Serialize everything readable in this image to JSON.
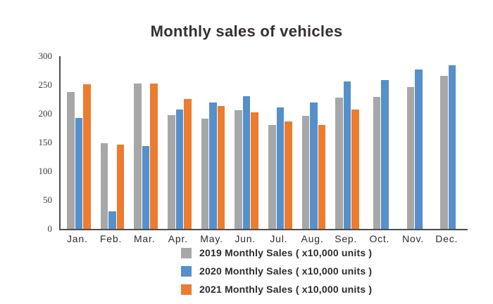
{
  "chart_data": {
    "type": "bar",
    "title": "Monthly sales of vehicles",
    "categories": [
      "Jan.",
      "Feb.",
      "Mar.",
      "Apr.",
      "May.",
      "Jun.",
      "Jul.",
      "Aug.",
      "Sep.",
      "Oct.",
      "Nov.",
      "Dec."
    ],
    "series": [
      {
        "name": "2019 Monthly Sales ( x10,000 units )",
        "color": "#a7a7a7",
        "values": [
          238,
          149,
          253,
          198,
          192,
          206,
          181,
          196,
          228,
          229,
          246,
          266
        ]
      },
      {
        "name": "2020 Monthly Sales ( x10,000 units )",
        "color": "#5590cb",
        "values": [
          193,
          31,
          144,
          207,
          220,
          231,
          211,
          219,
          256,
          258,
          277,
          284
        ]
      },
      {
        "name": "2021 Monthly Sales ( x10,000 units )",
        "color": "#ed7c2f",
        "values": [
          251,
          146,
          253,
          226,
          213,
          202,
          187,
          180,
          207,
          null,
          null,
          null
        ]
      }
    ],
    "ylim": [
      0,
      300
    ],
    "yticks": [
      0,
      50,
      100,
      150,
      200,
      250,
      300
    ],
    "xlabel": "",
    "ylabel": "",
    "grid": false,
    "legend_position": "bottom"
  },
  "colors": {
    "background": "#ffffff",
    "axis_line": "#4d4d4d",
    "title_text": "#362f31",
    "tick_text": "#3c3c3c",
    "label_text": "#2b2b2b"
  }
}
